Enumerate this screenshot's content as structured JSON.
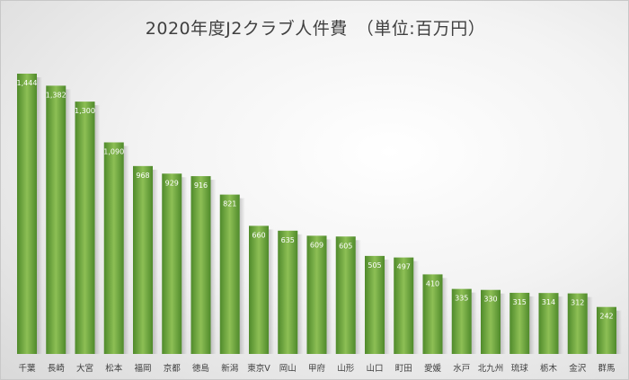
{
  "chart_data": {
    "type": "bar",
    "title": "2020年度J2クラブ人件費　（単位:百万円）",
    "categories": [
      "千葉",
      "長崎",
      "大宮",
      "松本",
      "福岡",
      "京都",
      "徳島",
      "新潟",
      "東京V",
      "岡山",
      "甲府",
      "山形",
      "山口",
      "町田",
      "愛媛",
      "水戸",
      "北九州",
      "琉球",
      "栃木",
      "金沢",
      "群馬"
    ],
    "values": [
      1444,
      1382,
      1300,
      1090,
      968,
      929,
      916,
      821,
      660,
      635,
      609,
      605,
      505,
      497,
      410,
      335,
      330,
      315,
      314,
      312,
      242
    ],
    "value_labels": [
      "1,444",
      "1,382",
      "1,300",
      "1,090",
      "968",
      "929",
      "916",
      "821",
      "660",
      "635",
      "609",
      "605",
      "505",
      "497",
      "410",
      "335",
      "330",
      "315",
      "314",
      "312",
      "242"
    ],
    "ylim": [
      0,
      1444
    ],
    "xlabel": "",
    "ylabel": "",
    "grid": false,
    "legend": "none",
    "colors": {
      "bar_light": "#8dbf55",
      "bar_dark": "#4f8a2b",
      "label_text": "#ffffff",
      "tick_text": "#404040",
      "title_text": "#404040"
    }
  }
}
